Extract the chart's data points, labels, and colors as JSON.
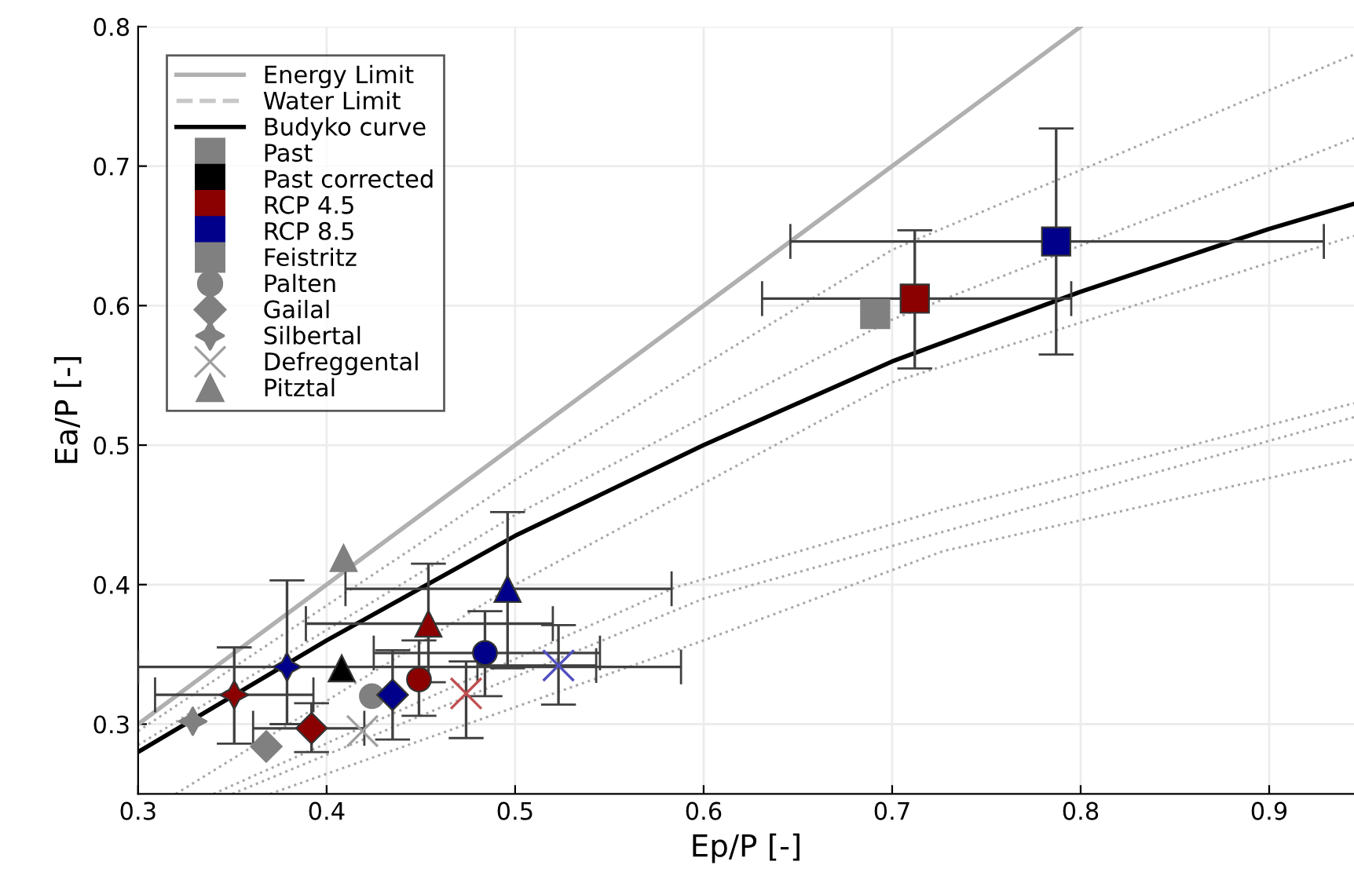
{
  "chart_data": {
    "type": "scatter",
    "xlabel": "Ep/P [-]",
    "ylabel": "Ea/P [-]",
    "xlim": [
      0.3,
      0.945
    ],
    "ylim": [
      0.25,
      0.8
    ],
    "xticks": [
      0.3,
      0.4,
      0.5,
      0.6,
      0.7,
      0.8,
      0.9
    ],
    "yticks": [
      0.3,
      0.4,
      0.5,
      0.6,
      0.7,
      0.8
    ],
    "grid": true,
    "legend": "top left",
    "series": [
      {
        "name": "Energy Limit",
        "type": "line",
        "color": "#b0b0b0",
        "line_style": "solid",
        "marker": "none",
        "x": [
          0.3,
          0.8
        ],
        "values": [
          0.3,
          0.8
        ]
      },
      {
        "name": "Water Limit",
        "type": "line",
        "color": "#c8c8c8",
        "line_style": "dashed",
        "marker": "none"
      },
      {
        "name": "Budyko curve",
        "type": "line",
        "color": "#000000",
        "line_style": "solid",
        "marker": "none",
        "x": [
          0.3,
          0.4,
          0.5,
          0.6,
          0.7,
          0.8,
          0.9,
          0.945
        ],
        "values": [
          0.28,
          0.36,
          0.435,
          0.5,
          0.56,
          0.61,
          0.655,
          0.673
        ]
      },
      {
        "name": "Past",
        "color": "#808080",
        "marker": "square"
      },
      {
        "name": "Past corrected",
        "color": "#000000",
        "marker": "square"
      },
      {
        "name": "RCP 4.5",
        "color": "#8b0000",
        "marker": "square"
      },
      {
        "name": "RCP 8.5",
        "color": "#00008b",
        "marker": "square"
      },
      {
        "name": "Feistritz",
        "color": "#808080",
        "marker": "square",
        "x": [
          0.691,
          0.712,
          0.787
        ],
        "values": [
          0.594,
          0.605,
          0.646
        ],
        "colors": [
          "#808080",
          "#8b0000",
          "#00008b"
        ],
        "errors": [
          null,
          [
            0.555,
            0.654
          ],
          [
            0.565,
            0.727
          ]
        ],
        "xerrors": [
          null,
          [
            0.631,
            0.795
          ],
          [
            0.646,
            0.929
          ]
        ]
      },
      {
        "name": "Palten",
        "color": "#808080",
        "marker": "circle",
        "x": [
          0.424,
          0.449,
          0.484
        ],
        "values": [
          0.32,
          0.332,
          0.351
        ],
        "colors": [
          "#808080",
          "#8b0000",
          "#00008b"
        ],
        "errors": [
          null,
          [
            0.306,
            0.36
          ],
          [
            0.32,
            0.381
          ]
        ],
        "xerrors": [
          null,
          null,
          [
            0.425,
            0.545
          ]
        ]
      },
      {
        "name": "Gailal",
        "color": "#808080",
        "marker": "diamond",
        "x": [
          0.368,
          0.392,
          0.435
        ],
        "values": [
          0.284,
          0.297,
          0.321
        ],
        "colors": [
          "#808080",
          "#8b0000",
          "#00008b"
        ],
        "errors": [
          null,
          [
            0.28,
            0.315
          ],
          [
            0.289,
            0.353
          ]
        ],
        "xerrors": [
          null,
          [
            0.361,
            0.42
          ],
          null
        ]
      },
      {
        "name": "Silbertal",
        "color": "#808080",
        "marker": "star",
        "x": [
          0.329,
          0.351,
          0.379
        ],
        "values": [
          0.302,
          0.321,
          0.341
        ],
        "colors": [
          "#808080",
          "#8b0000",
          "#00008b"
        ],
        "errors": [
          null,
          [
            0.286,
            0.355
          ],
          [
            0.3,
            0.403
          ]
        ],
        "xerrors": [
          null,
          [
            0.309,
            0.393
          ],
          [
            0.3,
            0.588
          ]
        ]
      },
      {
        "name": "Defreggental",
        "color": "#a0a0a0",
        "marker": "cross",
        "x": [
          0.419,
          0.474,
          0.523
        ],
        "values": [
          0.295,
          0.322,
          0.342
        ],
        "colors": [
          "#a0a0a0",
          "#c05050",
          "#5050c0"
        ],
        "errors": [
          null,
          [
            0.29,
            0.345
          ],
          [
            0.314,
            0.371
          ]
        ],
        "xerrors": [
          null,
          null,
          [
            0.48,
            0.543
          ]
        ]
      },
      {
        "name": "Pitztal",
        "color": "#808080",
        "marker": "triangle",
        "x": [
          0.409,
          0.408,
          0.454,
          0.496
        ],
        "values": [
          0.419,
          0.34,
          0.372,
          0.397
        ],
        "colors": [
          "#808080",
          "#000000",
          "#8b0000",
          "#00008b"
        ],
        "errors": [
          null,
          null,
          [
            0.33,
            0.415
          ],
          [
            0.34,
            0.452
          ]
        ],
        "xerrors": [
          null,
          null,
          [
            0.389,
            0.52
          ],
          [
            0.41,
            0.583
          ]
        ]
      },
      {
        "type": "line",
        "color": "#a8a8a8",
        "line_style": "dotted",
        "marker": "none",
        "x": [
          0.3,
          0.5,
          0.7,
          0.945
        ],
        "values": [
          0.295,
          0.475,
          0.64,
          0.78
        ]
      },
      {
        "type": "line",
        "color": "#a8a8a8",
        "line_style": "dotted",
        "marker": "none",
        "x": [
          0.3,
          0.5,
          0.7,
          0.945
        ],
        "values": [
          0.285,
          0.45,
          0.59,
          0.72
        ]
      },
      {
        "type": "line",
        "color": "#a8a8a8",
        "line_style": "dotted",
        "marker": "none",
        "x": [
          0.32,
          0.5,
          0.7,
          0.945
        ],
        "values": [
          0.25,
          0.4,
          0.545,
          0.65
        ]
      },
      {
        "type": "line",
        "color": "#a8a8a8",
        "line_style": "dotted",
        "marker": "none",
        "x": [
          0.34,
          0.585,
          0.727,
          0.945
        ],
        "values": [
          0.25,
          0.398,
          0.454,
          0.53
        ]
      },
      {
        "type": "line",
        "color": "#a8a8a8",
        "line_style": "dotted",
        "marker": "none",
        "x": [
          0.35,
          0.6,
          0.945
        ],
        "values": [
          0.25,
          0.39,
          0.52
        ]
      },
      {
        "type": "line",
        "color": "#a8a8a8",
        "line_style": "dotted",
        "marker": "none",
        "x": [
          0.37,
          0.6,
          0.727,
          0.945
        ],
        "values": [
          0.25,
          0.36,
          0.424,
          0.49
        ]
      }
    ]
  }
}
